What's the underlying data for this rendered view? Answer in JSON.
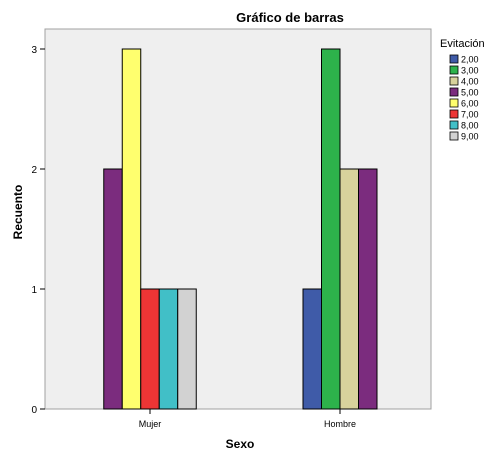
{
  "chart_data": {
    "type": "bar",
    "title": "Gráfico de barras",
    "xlabel": "Sexo",
    "ylabel": "Recuento",
    "ylim": [
      0,
      3
    ],
    "yticks": [
      "0",
      "1",
      "2",
      "3"
    ],
    "categories": [
      "Mujer",
      "Hombre"
    ],
    "legend_title": "Evitación",
    "legend_position": "right",
    "grid": false,
    "series": [
      {
        "name": "2,00",
        "color": "#3F5BA8",
        "values": [
          0,
          1
        ]
      },
      {
        "name": "3,00",
        "color": "#2DB24B",
        "values": [
          0,
          3
        ]
      },
      {
        "name": "4,00",
        "color": "#D8D29C",
        "values": [
          0,
          2
        ]
      },
      {
        "name": "5,00",
        "color": "#7B2C7E",
        "values": [
          2,
          2
        ]
      },
      {
        "name": "6,00",
        "color": "#FFFF6E",
        "values": [
          3,
          0
        ]
      },
      {
        "name": "7,00",
        "color": "#ED3535",
        "values": [
          1,
          0
        ]
      },
      {
        "name": "8,00",
        "color": "#41BFC7",
        "values": [
          1,
          0
        ]
      },
      {
        "name": "9,00",
        "color": "#D2D2D2",
        "values": [
          1,
          0
        ]
      }
    ]
  }
}
